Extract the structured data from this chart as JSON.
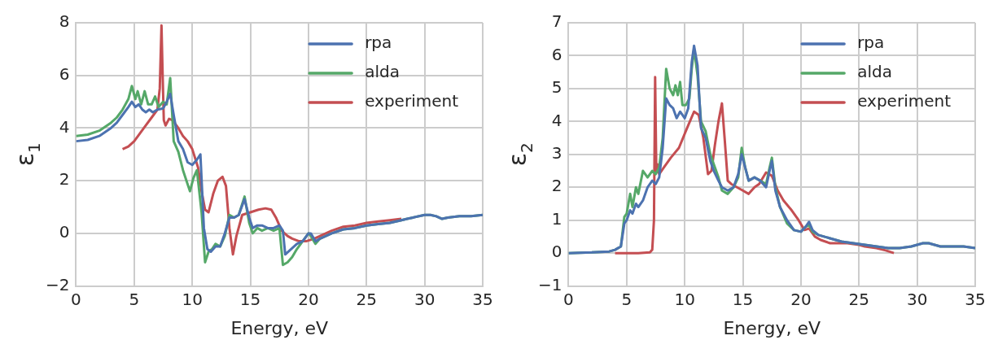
{
  "chart_data": [
    {
      "type": "line",
      "xlabel": "Energy, eV",
      "ylabel": "ε$_{1}$",
      "xlim": [
        0,
        35
      ],
      "xticks": [
        0,
        5,
        10,
        15,
        20,
        25,
        30,
        35
      ],
      "ylim": [
        -2,
        8
      ],
      "yticks": [
        -2,
        0,
        2,
        4,
        6,
        8
      ],
      "grid": true,
      "legend": "top right",
      "series": [
        {
          "name": "rpa",
          "color": "#4c72b0",
          "x": [
            0,
            1,
            2,
            3,
            3.5,
            4,
            4.5,
            4.8,
            5.1,
            5.4,
            5.7,
            6,
            6.3,
            6.6,
            7,
            7.5,
            7.8,
            8.1,
            8.4,
            8.8,
            9.2,
            9.6,
            10,
            10.4,
            10.7,
            11,
            11.3,
            11.6,
            12,
            12.4,
            12.8,
            13.2,
            13.6,
            14,
            14.5,
            14.9,
            15.2,
            15.6,
            16,
            16.5,
            17,
            17.5,
            17.8,
            18,
            18.5,
            19,
            19.5,
            20,
            20.2,
            20.6,
            21,
            22,
            23,
            24,
            25,
            26,
            27,
            28,
            28.5,
            29,
            30,
            30.5,
            31,
            31.5,
            32,
            33,
            34,
            35
          ],
          "values": [
            3.5,
            3.55,
            3.7,
            4,
            4.2,
            4.5,
            4.8,
            5,
            4.8,
            4.9,
            4.7,
            4.6,
            4.7,
            4.6,
            4.7,
            4.75,
            5,
            5.3,
            4.5,
            3.5,
            3.2,
            2.7,
            2.6,
            2.8,
            3,
            0.2,
            -0.6,
            -0.7,
            -0.5,
            -0.5,
            0,
            0.6,
            0.6,
            0.7,
            1.3,
            0.6,
            0.2,
            0.3,
            0.3,
            0.2,
            0.2,
            0.3,
            0.1,
            -0.8,
            -0.6,
            -0.4,
            -0.3,
            0,
            0,
            -0.3,
            -0.2,
            0,
            0.15,
            0.2,
            0.3,
            0.35,
            0.4,
            0.5,
            0.55,
            0.6,
            0.7,
            0.7,
            0.65,
            0.55,
            0.6,
            0.65,
            0.65,
            0.7
          ]
        },
        {
          "name": "alda",
          "color": "#55a868",
          "x": [
            0,
            1,
            2,
            3,
            3.5,
            4,
            4.5,
            4.8,
            5.1,
            5.3,
            5.6,
            5.9,
            6.2,
            6.5,
            6.8,
            7.1,
            7.5,
            7.8,
            8.1,
            8.4,
            8.8,
            9.2,
            9.5,
            9.8,
            10.1,
            10.4,
            10.8,
            11.1,
            11.4,
            11.7,
            12,
            12.4,
            12.8,
            13.2,
            13.6,
            14,
            14.5,
            14.9,
            15.2,
            15.6,
            16,
            16.5,
            17,
            17.5,
            17.8,
            18.2,
            18.6,
            19,
            19.5,
            20,
            20.2,
            20.6,
            21,
            22,
            23,
            24,
            25,
            26,
            27,
            28,
            28.5,
            29,
            30,
            30.5,
            31,
            31.5,
            32,
            33,
            34,
            35
          ],
          "values": [
            3.7,
            3.75,
            3.9,
            4.2,
            4.4,
            4.7,
            5.1,
            5.6,
            5.1,
            5.4,
            4.9,
            5.4,
            4.9,
            4.9,
            5.2,
            4.8,
            5,
            4.9,
            5.9,
            3.5,
            3.1,
            2.4,
            2,
            1.6,
            2.1,
            2.4,
            0.8,
            -1.1,
            -0.7,
            -0.6,
            -0.4,
            -0.5,
            -0.1,
            0.7,
            0.6,
            0.7,
            1.4,
            0.4,
            0,
            0.2,
            0.1,
            0.2,
            0.1,
            0.2,
            -1.2,
            -1.1,
            -0.9,
            -0.6,
            -0.3,
            0,
            -0.1,
            -0.4,
            -0.2,
            0,
            0.15,
            0.2,
            0.3,
            0.35,
            0.4,
            0.5,
            0.55,
            0.6,
            0.7,
            0.7,
            0.65,
            0.55,
            0.6,
            0.65,
            0.65,
            0.7
          ]
        },
        {
          "name": "experiment",
          "color": "#c44e52",
          "x": [
            4,
            4.5,
            5,
            5.5,
            6,
            6.5,
            7,
            7.2,
            7.35,
            7.45,
            7.55,
            7.7,
            8,
            8.3,
            8.8,
            9.2,
            9.6,
            10,
            10.5,
            10.8,
            11.1,
            11.4,
            11.8,
            12.2,
            12.6,
            12.9,
            13.2,
            13.5,
            13.8,
            14.3,
            15,
            15.7,
            16.3,
            16.8,
            17.2,
            17.7,
            18.2,
            18.6,
            19.2,
            19.8,
            20.5,
            21,
            21.5,
            22,
            23,
            24,
            25,
            26,
            27,
            28
          ],
          "values": [
            3.2,
            3.3,
            3.5,
            3.8,
            4.1,
            4.4,
            4.7,
            5.5,
            7.9,
            6,
            4.3,
            4.1,
            4.35,
            4.3,
            4,
            3.7,
            3.5,
            3.2,
            2.5,
            1.6,
            0.9,
            0.8,
            1.5,
            2,
            2.15,
            1.8,
            0.2,
            -0.8,
            -0.1,
            0.7,
            0.8,
            0.9,
            0.95,
            0.9,
            0.6,
            0.1,
            -0.1,
            -0.2,
            -0.3,
            -0.3,
            -0.2,
            -0.1,
            0,
            0.1,
            0.25,
            0.3,
            0.4,
            0.45,
            0.5,
            0.55
          ]
        }
      ]
    },
    {
      "type": "line",
      "xlabel": "Energy, eV",
      "ylabel": "ε$_{2}$",
      "xlim": [
        0,
        35
      ],
      "xticks": [
        0,
        5,
        10,
        15,
        20,
        25,
        30,
        35
      ],
      "ylim": [
        -1,
        7
      ],
      "yticks": [
        -1,
        0,
        1,
        2,
        3,
        4,
        5,
        6,
        7
      ],
      "grid": true,
      "legend": "top right",
      "series": [
        {
          "name": "rpa",
          "color": "#4c72b0",
          "x": [
            0,
            2,
            3.5,
            4,
            4.5,
            4.8,
            5,
            5.3,
            5.5,
            5.8,
            6,
            6.4,
            6.8,
            7.2,
            7.5,
            7.8,
            8.1,
            8.4,
            8.7,
            9,
            9.3,
            9.6,
            10,
            10.3,
            10.6,
            10.8,
            11.1,
            11.4,
            11.8,
            12.2,
            12.5,
            12.9,
            13.2,
            13.7,
            14.2,
            14.6,
            14.9,
            15.2,
            15.5,
            16,
            16.5,
            17,
            17.3,
            17.5,
            17.8,
            18.2,
            18.8,
            19.4,
            20,
            20.4,
            20.7,
            21,
            21.5,
            22.5,
            23.5,
            24.5,
            25.5,
            26.5,
            27.5,
            28.5,
            29.5,
            30.5,
            31,
            32,
            33,
            34,
            35
          ],
          "values": [
            0,
            0.02,
            0.05,
            0.1,
            0.2,
            0.9,
            1,
            1.3,
            1.2,
            1.5,
            1.4,
            1.6,
            2,
            2.2,
            2.1,
            2.3,
            3.2,
            4.7,
            4.5,
            4.4,
            4.1,
            4.3,
            4.1,
            4.4,
            5.8,
            6.3,
            5.7,
            3.8,
            3.5,
            2.8,
            2.5,
            2.2,
            2,
            1.9,
            2,
            2.4,
            3,
            2.6,
            2.2,
            2.3,
            2.2,
            2,
            2.5,
            2.8,
            1.9,
            1.4,
            1,
            0.7,
            0.65,
            0.8,
            0.95,
            0.7,
            0.55,
            0.45,
            0.35,
            0.3,
            0.25,
            0.2,
            0.15,
            0.15,
            0.2,
            0.3,
            0.3,
            0.2,
            0.2,
            0.2,
            0.15
          ]
        },
        {
          "name": "alda",
          "color": "#55a868",
          "x": [
            0,
            2,
            3.5,
            4,
            4.5,
            4.8,
            5,
            5.3,
            5.5,
            5.8,
            6,
            6.4,
            6.8,
            7.2,
            7.5,
            7.8,
            8.1,
            8.4,
            8.7,
            9,
            9.2,
            9.4,
            9.6,
            9.8,
            10.1,
            10.4,
            10.6,
            10.8,
            11.1,
            11.4,
            11.8,
            12.2,
            12.5,
            12.9,
            13.2,
            13.7,
            14.2,
            14.6,
            14.9,
            15.2,
            15.5,
            16,
            16.5,
            17,
            17.3,
            17.5,
            17.8,
            18.2,
            18.8,
            19.4,
            20,
            20.4,
            20.7,
            21,
            21.5,
            22.5,
            23.5,
            24.5,
            25.5,
            26.5,
            27.5,
            28.5,
            29.5,
            30.5,
            31,
            32,
            33,
            34,
            35
          ],
          "values": [
            0,
            0.02,
            0.05,
            0.1,
            0.2,
            1.1,
            1.2,
            1.8,
            1.4,
            2,
            1.8,
            2.5,
            2.3,
            2.5,
            2.4,
            2.6,
            3.5,
            5.6,
            5,
            4.8,
            5.1,
            4.8,
            5.2,
            4.5,
            4.5,
            4.7,
            5.6,
            6.2,
            5.4,
            4,
            3.7,
            3,
            2.7,
            2.3,
            1.9,
            1.8,
            2,
            2.3,
            3.2,
            2.6,
            2.2,
            2.3,
            2.2,
            2.1,
            2.6,
            2.9,
            2,
            1.4,
            0.9,
            0.7,
            0.65,
            0.8,
            0.85,
            0.65,
            0.55,
            0.45,
            0.35,
            0.3,
            0.25,
            0.2,
            0.15,
            0.15,
            0.2,
            0.3,
            0.3,
            0.2,
            0.2,
            0.2,
            0.15
          ]
        },
        {
          "name": "experiment",
          "color": "#c44e52",
          "x": [
            4,
            5,
            6,
            7,
            7.2,
            7.35,
            7.45,
            7.55,
            7.65,
            7.8,
            8.2,
            8.8,
            9.5,
            10.2,
            10.8,
            11.2,
            11.6,
            12,
            12.3,
            12.6,
            12.9,
            13.2,
            13.45,
            13.7,
            14,
            14.5,
            15,
            15.5,
            16,
            16.4,
            17,
            17.5,
            18,
            18.5,
            19.2,
            19.8,
            20.3,
            20.7,
            21.2,
            21.7,
            22.5,
            24,
            25,
            25.5,
            26.5,
            27.3,
            28
          ],
          "values": [
            0,
            0,
            0,
            0.02,
            0.1,
            1,
            5.35,
            2.5,
            2.7,
            2.4,
            2.6,
            2.9,
            3.2,
            3.8,
            4.3,
            4.2,
            3.5,
            2.4,
            2.5,
            3.3,
            4,
            4.55,
            3.4,
            2.2,
            2.1,
            2,
            1.9,
            1.8,
            2,
            2.1,
            2.45,
            2.35,
            1.9,
            1.6,
            1.3,
            1,
            0.7,
            0.75,
            0.5,
            0.4,
            0.3,
            0.3,
            0.25,
            0.2,
            0.15,
            0.08,
            0
          ]
        }
      ]
    }
  ]
}
